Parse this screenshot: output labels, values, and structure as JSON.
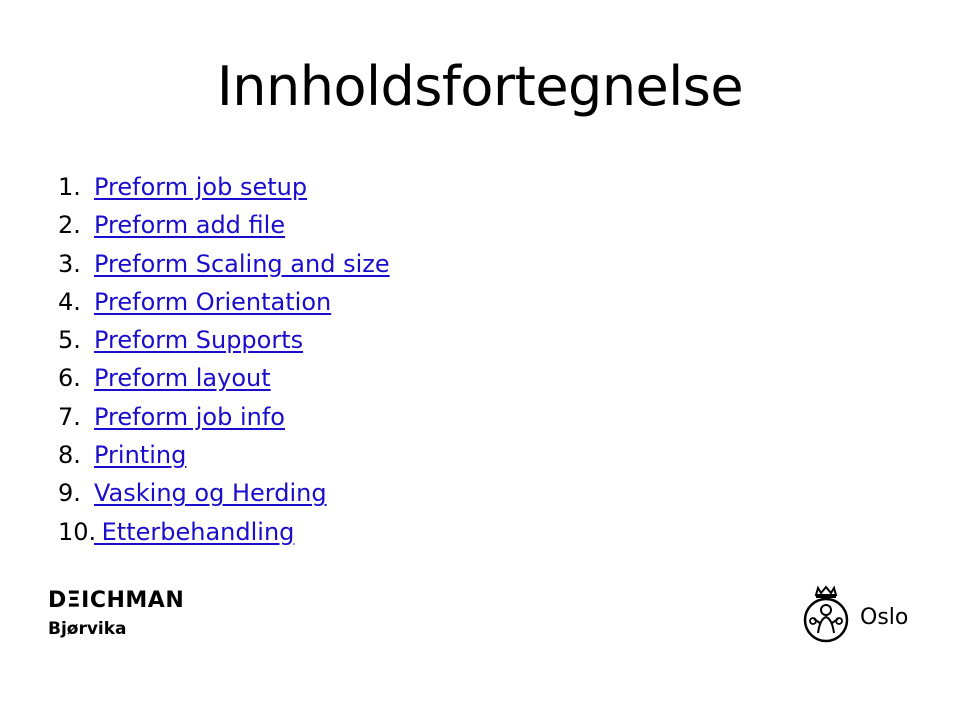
{
  "title": "Innholdsfortegnelse",
  "toc": [
    {
      "num": "1.",
      "label": "Preform job setup"
    },
    {
      "num": "2.",
      "label": "Preform add file"
    },
    {
      "num": "3.",
      "label": "Preform Scaling and size"
    },
    {
      "num": "4.",
      "label": "Preform Orientation"
    },
    {
      "num": "5.",
      "label": "Preform Supports"
    },
    {
      "num": "6.",
      "label": "Preform layout"
    },
    {
      "num": "7.",
      "label": "Preform job info"
    },
    {
      "num": "8.",
      "label": "Printing"
    },
    {
      "num": "9.",
      "label": "Vasking og Herding"
    },
    {
      "num": "10.",
      "label": " Etterbehandling"
    }
  ],
  "branding": {
    "name": "DΞICHMAN",
    "subtitle": "Bjørvika",
    "city_label": "Oslo",
    "city_icon": "oslo-seal-icon"
  },
  "colors": {
    "link": "#1a0dcc",
    "text": "#000000",
    "background": "#ffffff"
  }
}
